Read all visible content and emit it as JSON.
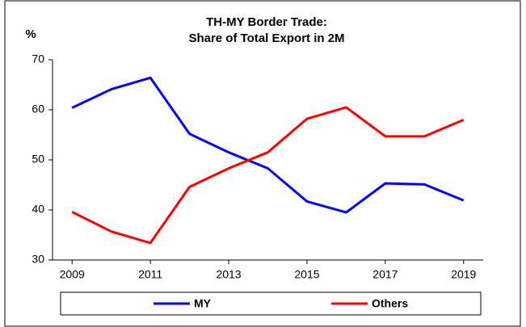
{
  "chart_data": {
    "type": "line",
    "title": [
      "TH-MY Border Trade:",
      "Share of Total Export in 2M"
    ],
    "y_label": "%",
    "x": [
      2009,
      2010,
      2011,
      2012,
      2013,
      2014,
      2015,
      2016,
      2017,
      2018,
      2019
    ],
    "series": [
      {
        "name": "MY",
        "color": "#0000ff",
        "values": [
          60.4,
          64.1,
          66.4,
          55.2,
          51.5,
          48.3,
          41.7,
          39.5,
          45.3,
          45.1,
          41.9
        ]
      },
      {
        "name": "Others",
        "color": "#ff0000",
        "values": [
          39.6,
          35.7,
          33.4,
          44.6,
          48.3,
          51.5,
          58.2,
          60.5,
          54.7,
          54.7,
          58.0
        ]
      }
    ],
    "xlim": [
      2008.5,
      2019.5
    ],
    "xticks": [
      2009,
      2011,
      2013,
      2015,
      2017,
      2019
    ],
    "ylim": [
      30,
      70
    ],
    "yticks": [
      30,
      40,
      50,
      60,
      70
    ],
    "legend": "bottom"
  }
}
